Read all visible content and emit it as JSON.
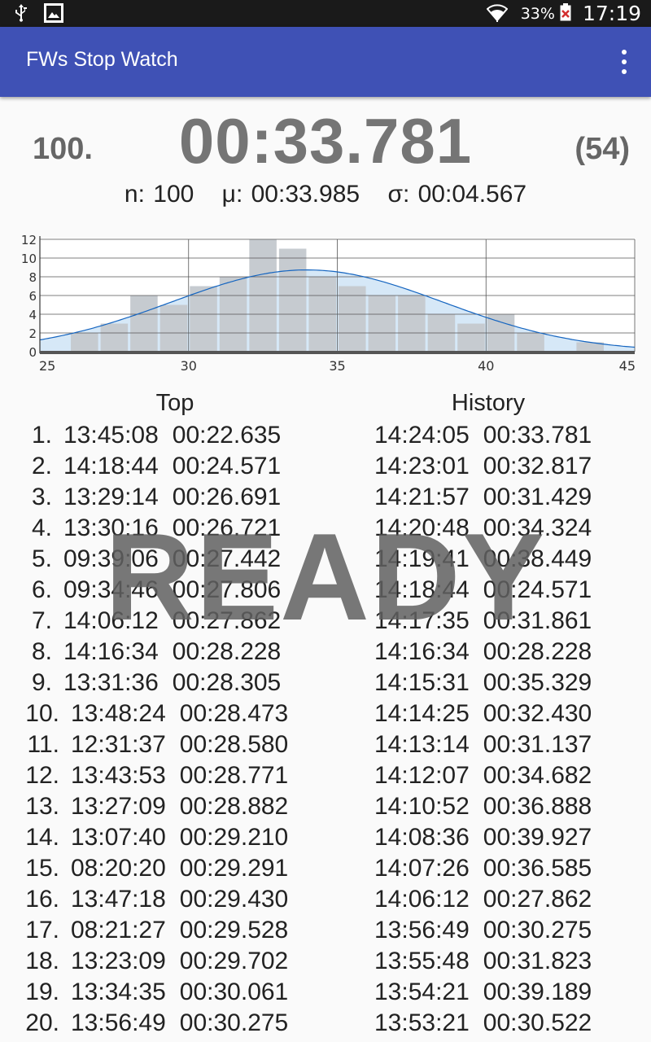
{
  "status_bar": {
    "icons": [
      "usb-icon",
      "image-icon",
      "wifi-icon",
      "battery-icon"
    ],
    "battery": "33%",
    "clock": "17:19"
  },
  "app": {
    "title": "FWs Stop Watch",
    "menu_icon": "overflow-menu-icon",
    "brand_color": "#3f51b5"
  },
  "timer": {
    "lap": "100.",
    "time": "00:33.781",
    "rank": "(54)"
  },
  "stats": {
    "n": "n: 100",
    "mean": "μ: 00:33.985",
    "sigma": "σ: 00:04.567"
  },
  "chart_data": {
    "type": "bar",
    "x_ticks": [
      "25",
      "30",
      "35",
      "40",
      "45"
    ],
    "y_ticks": [
      "0",
      "2",
      "4",
      "6",
      "8",
      "10",
      "12"
    ],
    "xlim": [
      25,
      45
    ],
    "ylim": [
      0,
      12
    ],
    "grid": true,
    "bin_width": 1,
    "bins": [
      {
        "start": 26,
        "count": 2
      },
      {
        "start": 27,
        "count": 3
      },
      {
        "start": 28,
        "count": 6
      },
      {
        "start": 29,
        "count": 5
      },
      {
        "start": 30,
        "count": 7
      },
      {
        "start": 31,
        "count": 8
      },
      {
        "start": 32,
        "count": 12
      },
      {
        "start": 33,
        "count": 11
      },
      {
        "start": 34,
        "count": 8
      },
      {
        "start": 35,
        "count": 7
      },
      {
        "start": 36,
        "count": 6
      },
      {
        "start": 37,
        "count": 6
      },
      {
        "start": 38,
        "count": 4
      },
      {
        "start": 39,
        "count": 3
      },
      {
        "start": 40,
        "count": 4
      },
      {
        "start": 41,
        "count": 2
      },
      {
        "start": 43,
        "count": 1
      }
    ],
    "normal_curve": {
      "mean": 33.985,
      "sigma": 4.567,
      "n": 100
    },
    "bar_color": "#c6cbd0",
    "curve_color": "#1565c0",
    "curve_fill": "#d6e8f7"
  },
  "top": {
    "header": "Top",
    "rows": [
      {
        "rank": "1.",
        "clock": "13:45:08",
        "time": "00:22.635"
      },
      {
        "rank": "2.",
        "clock": "14:18:44",
        "time": "00:24.571"
      },
      {
        "rank": "3.",
        "clock": "13:29:14",
        "time": "00:26.691"
      },
      {
        "rank": "4.",
        "clock": "13:30:16",
        "time": "00:26.721"
      },
      {
        "rank": "5.",
        "clock": "09:39:06",
        "time": "00:27.442"
      },
      {
        "rank": "6.",
        "clock": "09:34:46",
        "time": "00:27.806"
      },
      {
        "rank": "7.",
        "clock": "14:06:12",
        "time": "00:27.862"
      },
      {
        "rank": "8.",
        "clock": "14:16:34",
        "time": "00:28.228"
      },
      {
        "rank": "9.",
        "clock": "13:31:36",
        "time": "00:28.305"
      },
      {
        "rank": "10.",
        "clock": "13:48:24",
        "time": "00:28.473"
      },
      {
        "rank": "11.",
        "clock": "12:31:37",
        "time": "00:28.580"
      },
      {
        "rank": "12.",
        "clock": "13:43:53",
        "time": "00:28.771"
      },
      {
        "rank": "13.",
        "clock": "13:27:09",
        "time": "00:28.882"
      },
      {
        "rank": "14.",
        "clock": "13:07:40",
        "time": "00:29.210"
      },
      {
        "rank": "15.",
        "clock": "08:20:20",
        "time": "00:29.291"
      },
      {
        "rank": "16.",
        "clock": "13:47:18",
        "time": "00:29.430"
      },
      {
        "rank": "17.",
        "clock": "08:21:27",
        "time": "00:29.528"
      },
      {
        "rank": "18.",
        "clock": "13:23:09",
        "time": "00:29.702"
      },
      {
        "rank": "19.",
        "clock": "13:34:35",
        "time": "00:30.061"
      },
      {
        "rank": "20.",
        "clock": "13:56:49",
        "time": "00:30.275"
      }
    ]
  },
  "history": {
    "header": "History",
    "rows": [
      {
        "clock": "14:24:05",
        "time": "00:33.781"
      },
      {
        "clock": "14:23:01",
        "time": "00:32.817"
      },
      {
        "clock": "14:21:57",
        "time": "00:31.429"
      },
      {
        "clock": "14:20:48",
        "time": "00:34.324"
      },
      {
        "clock": "14:19:41",
        "time": "00:38.449"
      },
      {
        "clock": "14:18:44",
        "time": "00:24.571"
      },
      {
        "clock": "14:17:35",
        "time": "00:31.861"
      },
      {
        "clock": "14:16:34",
        "time": "00:28.228"
      },
      {
        "clock": "14:15:31",
        "time": "00:35.329"
      },
      {
        "clock": "14:14:25",
        "time": "00:32.430"
      },
      {
        "clock": "14:13:14",
        "time": "00:31.137"
      },
      {
        "clock": "14:12:07",
        "time": "00:34.682"
      },
      {
        "clock": "14:10:52",
        "time": "00:36.888"
      },
      {
        "clock": "14:08:36",
        "time": "00:39.927"
      },
      {
        "clock": "14:07:26",
        "time": "00:36.585"
      },
      {
        "clock": "14:06:12",
        "time": "00:27.862"
      },
      {
        "clock": "13:56:49",
        "time": "00:30.275"
      },
      {
        "clock": "13:55:48",
        "time": "00:31.823"
      },
      {
        "clock": "13:54:21",
        "time": "00:39.189"
      },
      {
        "clock": "13:53:21",
        "time": "00:30.522"
      }
    ]
  },
  "overlay": {
    "label": "READY"
  }
}
